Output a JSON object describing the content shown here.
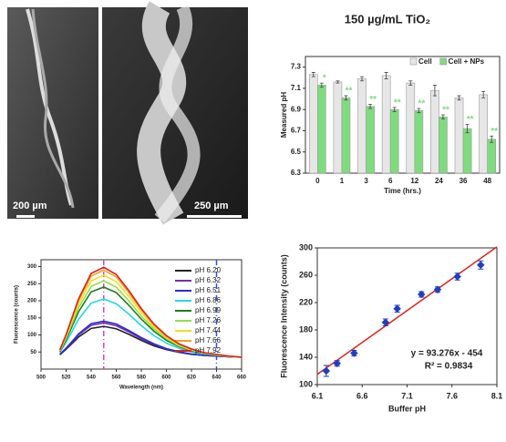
{
  "panels": [
    {
      "scale_bar": "200 µm"
    },
    {
      "scale_bar": "250 µm"
    }
  ],
  "chart_data": [
    {
      "type": "bar",
      "title": "150 µg/mL TiO₂",
      "x_label": "Time (hrs.)",
      "y_label": "Measured pH",
      "categories": [
        "0",
        "1",
        "3",
        "6",
        "12",
        "24",
        "36",
        "48"
      ],
      "series": [
        {
          "name": "Cell",
          "color": "#e6e6e6",
          "values": [
            7.23,
            7.16,
            7.19,
            7.22,
            7.15,
            7.08,
            7.01,
            7.04
          ],
          "errors": [
            0.02,
            0.01,
            0.02,
            0.03,
            0.02,
            0.05,
            0.02,
            0.03
          ]
        },
        {
          "name": "Cell + NPs",
          "color": "#7edc7e",
          "values": [
            7.13,
            7.01,
            6.93,
            6.9,
            6.89,
            6.83,
            6.72,
            6.62
          ],
          "errors": [
            0.02,
            0.02,
            0.02,
            0.02,
            0.02,
            0.02,
            0.04,
            0.03
          ],
          "significance": [
            "*",
            "**",
            "**",
            "**",
            "**",
            "**",
            "**",
            "**"
          ]
        }
      ],
      "ylim": [
        6.3,
        7.4
      ],
      "yticks": [
        6.3,
        6.5,
        6.7,
        6.9,
        7.1,
        7.3
      ]
    },
    {
      "type": "line",
      "x_label": "Wavelength (nm)",
      "y_label": "Fluorescence (counts)",
      "x": [
        515,
        520,
        530,
        540,
        550,
        560,
        570,
        580,
        590,
        600,
        610,
        620,
        630,
        640,
        650,
        660
      ],
      "series": [
        {
          "name": "pH 6.20",
          "color": "#222222",
          "values": [
            42,
            58,
            94,
            119,
            125,
            118,
            102,
            84,
            68,
            57,
            49,
            43,
            40,
            38,
            36,
            35
          ]
        },
        {
          "name": "pH 6.32",
          "color": "#7a2fb0",
          "values": [
            43,
            60,
            100,
            128,
            135,
            127,
            109,
            89,
            72,
            59,
            50,
            44,
            40,
            38,
            36,
            35
          ]
        },
        {
          "name": "pH 6.51",
          "color": "#2a2ae0",
          "values": [
            43,
            61,
            103,
            133,
            140,
            132,
            113,
            92,
            74,
            60,
            51,
            44,
            40,
            38,
            36,
            35
          ]
        },
        {
          "name": "pH 6.86",
          "color": "#20d8f0",
          "values": [
            49,
            78,
            146,
            193,
            205,
            191,
            161,
            127,
            98,
            76,
            61,
            50,
            44,
            40,
            37,
            35
          ]
        },
        {
          "name": "pH 6.99",
          "color": "#1e7a1e",
          "values": [
            51,
            86,
            168,
            226,
            240,
            224,
            187,
            146,
            111,
            84,
            66,
            53,
            45,
            41,
            37,
            35
          ]
        },
        {
          "name": "pH 7.26",
          "color": "#8fe04a",
          "values": [
            53,
            91,
            180,
            242,
            258,
            240,
            200,
            155,
            118,
            89,
            68,
            55,
            46,
            42,
            37,
            35
          ]
        },
        {
          "name": "pH 7.44",
          "color": "#f0e020",
          "values": [
            54,
            95,
            191,
            258,
            275,
            256,
            213,
            165,
            124,
            93,
            71,
            57,
            47,
            42,
            37,
            35
          ]
        },
        {
          "name": "pH 7.66",
          "color": "#f5a020",
          "values": [
            55,
            99,
            201,
            272,
            290,
            270,
            224,
            173,
            129,
            96,
            73,
            58,
            48,
            43,
            38,
            35
          ]
        },
        {
          "name": "pH 7.92",
          "color": "#e02020",
          "values": [
            56,
            101,
            206,
            280,
            298,
            277,
            230,
            177,
            132,
            98,
            74,
            59,
            48,
            43,
            38,
            35
          ]
        }
      ],
      "vlines": [
        {
          "x": 550,
          "color": "#e040c0"
        },
        {
          "x": 640,
          "color": "#3050e0"
        }
      ],
      "xlim": [
        500,
        660
      ],
      "xticks": [
        500,
        520,
        540,
        560,
        580,
        600,
        620,
        640,
        660
      ],
      "ylim": [
        0,
        320
      ],
      "yticks": [
        50,
        100,
        150,
        200,
        250,
        300
      ]
    },
    {
      "type": "scatter",
      "x_label": "Buffer pH",
      "y_label": "Fluorescence Intensity (counts)",
      "x": [
        6.2,
        6.32,
        6.51,
        6.86,
        6.99,
        7.26,
        7.44,
        7.66,
        7.92
      ],
      "values": [
        120,
        131,
        146,
        191,
        211,
        232,
        239,
        258,
        275
      ],
      "errors": [
        8,
        4,
        4,
        5,
        5,
        4,
        4,
        5,
        6
      ],
      "color": "#1f3fbf",
      "fit": {
        "slope": 93.276,
        "intercept": -454,
        "color": "#e02020",
        "label": "y = 93.276x - 454",
        "r2_label": "R² = 0.9834"
      },
      "xlim": [
        6.1,
        8.1
      ],
      "xticks": [
        6.1,
        6.6,
        7.1,
        7.6,
        8.1
      ],
      "ylim": [
        100,
        300
      ],
      "yticks": [
        100,
        140,
        180,
        220,
        260,
        300
      ]
    }
  ]
}
